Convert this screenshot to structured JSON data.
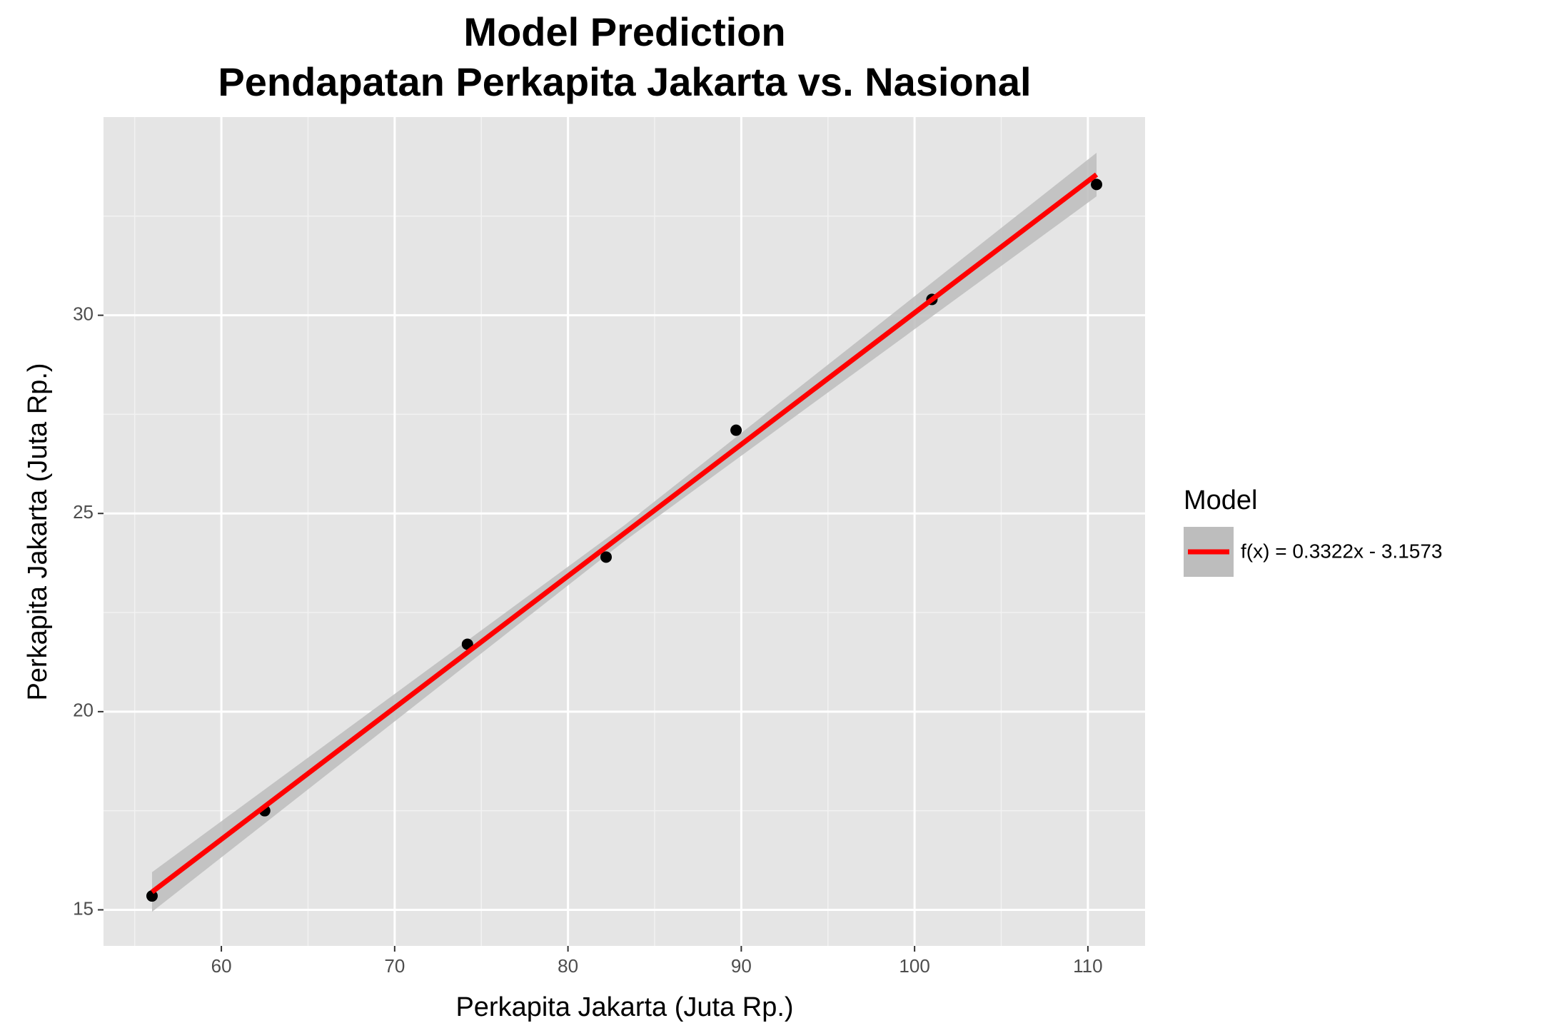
{
  "chart_data": {
    "type": "scatter",
    "title": "Model Prediction",
    "subtitle": "Pendapatan Perkapita Jakarta vs. Nasional",
    "x_label": "Perkapita Jakarta (Juta Rp.)",
    "y_label": "Perkapita Jakarta (Juta Rp.)",
    "xlim": [
      53.2,
      113.3
    ],
    "ylim": [
      14.09,
      35.0
    ],
    "xticks": [
      60,
      70,
      80,
      90,
      100,
      110
    ],
    "yticks": [
      15,
      20,
      25,
      30
    ],
    "xminor": [
      55,
      65,
      75,
      85,
      95,
      105
    ],
    "yminor": [
      17.5,
      22.5,
      27.5,
      32.5
    ],
    "grid": true,
    "points": {
      "color": "#000000",
      "x": [
        56.0,
        62.5,
        74.2,
        82.2,
        89.7,
        101.0,
        110.5
      ],
      "values": [
        15.35,
        17.5,
        21.7,
        23.9,
        27.1,
        30.4,
        33.3
      ]
    },
    "legend_title": "Model",
    "legend": "right",
    "fit": {
      "name": "f(x) = 0.3322x - 3.1573",
      "color": "#ff0000",
      "band_color": "#bdbdbd",
      "x": [
        56.0,
        83.25,
        110.5
      ],
      "values": [
        15.45,
        24.5,
        33.55
      ],
      "lower": [
        14.95,
        24.3,
        33.0
      ],
      "upper": [
        15.95,
        24.7,
        34.1
      ]
    }
  }
}
